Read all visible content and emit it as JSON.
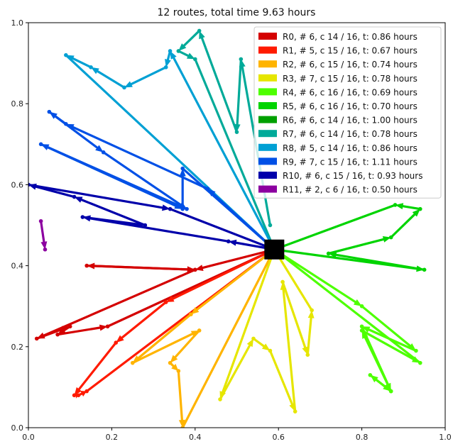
{
  "chart_data": {
    "type": "line",
    "title": "12 routes, total time 9.63 hours",
    "xlim": [
      0,
      1
    ],
    "ylim": [
      0,
      1
    ],
    "xticks": [
      "0.0",
      "0.2",
      "0.4",
      "0.6",
      "0.8",
      "1.0"
    ],
    "yticks": [
      "0.0",
      "0.2",
      "0.4",
      "0.6",
      "0.8",
      "1.0"
    ],
    "grid": false,
    "legend_position": "top-right",
    "depot": {
      "x": 0.59,
      "y": 0.44,
      "color": "#000000"
    },
    "series": [
      {
        "name": "R0, # 6, c 14 / 16, t: 0.86 hours",
        "color": "#d40000",
        "points": [
          [
            0.59,
            0.44
          ],
          [
            0.4,
            0.39
          ],
          [
            0.14,
            0.4
          ],
          [
            0.4,
            0.39
          ],
          [
            0.02,
            0.22
          ],
          [
            0.1,
            0.25
          ],
          [
            0.07,
            0.23
          ],
          [
            0.19,
            0.25
          ],
          [
            0.59,
            0.44
          ]
        ]
      },
      {
        "name": "R1, # 5, c 15 / 16, t: 0.67 hours",
        "color": "#ff1a00",
        "points": [
          [
            0.59,
            0.44
          ],
          [
            0.33,
            0.31
          ],
          [
            0.21,
            0.21
          ],
          [
            0.11,
            0.08
          ],
          [
            0.12,
            0.08
          ],
          [
            0.14,
            0.09
          ],
          [
            0.59,
            0.44
          ]
        ]
      },
      {
        "name": "R2, # 6, c 15 / 16, t: 0.74 hours",
        "color": "#ffb400",
        "points": [
          [
            0.59,
            0.44
          ],
          [
            0.39,
            0.28
          ],
          [
            0.25,
            0.16
          ],
          [
            0.41,
            0.24
          ],
          [
            0.34,
            0.16
          ],
          [
            0.36,
            0.14
          ],
          [
            0.37,
            0.0
          ],
          [
            0.59,
            0.44
          ]
        ]
      },
      {
        "name": "R3, # 7, c 15 / 16, t: 0.78 hours",
        "color": "#e6e600",
        "points": [
          [
            0.59,
            0.44
          ],
          [
            0.46,
            0.07
          ],
          [
            0.54,
            0.22
          ],
          [
            0.58,
            0.19
          ],
          [
            0.64,
            0.04
          ],
          [
            0.61,
            0.36
          ],
          [
            0.67,
            0.18
          ],
          [
            0.68,
            0.29
          ],
          [
            0.59,
            0.44
          ]
        ]
      },
      {
        "name": "R4, # 6, c 16 / 16, t: 0.69 hours",
        "color": "#4dff00",
        "points": [
          [
            0.59,
            0.44
          ],
          [
            0.8,
            0.3
          ],
          [
            0.93,
            0.19
          ],
          [
            0.8,
            0.25
          ],
          [
            0.87,
            0.09
          ],
          [
            0.82,
            0.13
          ],
          [
            0.87,
            0.09
          ],
          [
            0.8,
            0.24
          ],
          [
            0.94,
            0.16
          ],
          [
            0.59,
            0.44
          ]
        ]
      },
      {
        "name": "R5, # 6, c 16 / 16, t: 0.70 hours",
        "color": "#00d400",
        "points": [
          [
            0.59,
            0.44
          ],
          [
            0.95,
            0.39
          ],
          [
            0.72,
            0.43
          ],
          [
            0.87,
            0.47
          ],
          [
            0.94,
            0.54
          ],
          [
            0.88,
            0.55
          ],
          [
            0.59,
            0.44
          ]
        ]
      },
      {
        "name": "R6, # 6, c 14 / 16, t: 1.00 hours",
        "color": "#00a000",
        "points": [
          [
            0.59,
            0.44
          ],
          [
            0.59,
            0.44
          ]
        ]
      },
      {
        "name": "R7, # 6, c 14 / 16, t: 0.78 hours",
        "color": "#00aa99",
        "points": [
          [
            0.58,
            0.5
          ],
          [
            0.51,
            0.91
          ],
          [
            0.5,
            0.73
          ],
          [
            0.41,
            0.98
          ],
          [
            0.36,
            0.93
          ],
          [
            0.4,
            0.91
          ],
          [
            0.59,
            0.44
          ]
        ]
      },
      {
        "name": "R8, # 5, c 14 / 16, t: 0.86 hours",
        "color": "#00a0d4",
        "points": [
          [
            0.59,
            0.44
          ],
          [
            0.34,
            0.93
          ],
          [
            0.33,
            0.89
          ],
          [
            0.23,
            0.84
          ],
          [
            0.15,
            0.89
          ],
          [
            0.09,
            0.92
          ],
          [
            0.59,
            0.44
          ]
        ]
      },
      {
        "name": "R9, # 7, c 15 / 16, t: 1.11 hours",
        "color": "#0050e6",
        "points": [
          [
            0.59,
            0.44
          ],
          [
            0.43,
            0.59
          ],
          [
            0.09,
            0.75
          ],
          [
            0.05,
            0.78
          ],
          [
            0.18,
            0.68
          ],
          [
            0.38,
            0.54
          ],
          [
            0.03,
            0.7
          ],
          [
            0.37,
            0.54
          ],
          [
            0.37,
            0.64
          ],
          [
            0.59,
            0.44
          ]
        ]
      },
      {
        "name": "R10, # 6, c 15 / 16, t: 0.93 hours",
        "color": "#0000aa",
        "points": [
          [
            0.59,
            0.44
          ],
          [
            0.48,
            0.46
          ],
          [
            0.13,
            0.52
          ],
          [
            0.28,
            0.5
          ],
          [
            0.11,
            0.57
          ],
          [
            0.0,
            0.6
          ],
          [
            0.34,
            0.54
          ],
          [
            0.59,
            0.44
          ]
        ]
      },
      {
        "name": "R11, # 2, c 6 / 16, t: 0.50 hours",
        "color": "#8c00a0",
        "points": [
          [
            0.03,
            0.51
          ],
          [
            0.04,
            0.44
          ]
        ]
      }
    ]
  }
}
